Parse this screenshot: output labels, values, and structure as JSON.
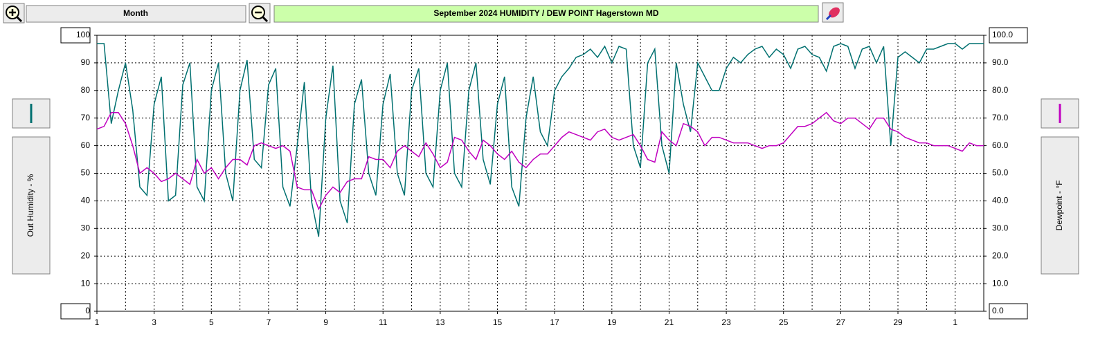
{
  "toolbar": {
    "period": "Month"
  },
  "chart_data": {
    "type": "line",
    "title": "September  2024  HUMIDITY / DEW POINT  Hagerstown MD",
    "y_label": "Out Humidity - %",
    "y2_label": "Dewpoint - °F",
    "x": [
      1,
      1.25,
      1.5,
      1.75,
      2,
      2.25,
      2.5,
      2.75,
      3,
      3.25,
      3.5,
      3.75,
      4,
      4.25,
      4.5,
      4.75,
      5,
      5.25,
      5.5,
      5.75,
      6,
      6.25,
      6.5,
      6.75,
      7,
      7.25,
      7.5,
      7.75,
      8,
      8.25,
      8.5,
      8.75,
      9,
      9.25,
      9.5,
      9.75,
      10,
      10.25,
      10.5,
      10.75,
      11,
      11.25,
      11.5,
      11.75,
      12,
      12.25,
      12.5,
      12.75,
      13,
      13.25,
      13.5,
      13.75,
      14,
      14.25,
      14.5,
      14.75,
      15,
      15.25,
      15.5,
      15.75,
      16,
      16.25,
      16.5,
      16.75,
      17,
      17.25,
      17.5,
      17.75,
      18,
      18.25,
      18.5,
      18.75,
      19,
      19.25,
      19.5,
      19.75,
      20,
      20.25,
      20.5,
      20.75,
      21,
      21.25,
      21.5,
      21.75,
      22,
      22.25,
      22.5,
      22.75,
      23,
      23.25,
      23.5,
      23.75,
      24,
      24.25,
      24.5,
      24.75,
      25,
      25.25,
      25.5,
      25.75,
      26,
      26.25,
      26.5,
      26.75,
      27,
      27.25,
      27.5,
      27.75,
      28,
      28.25,
      28.5,
      28.75,
      29,
      29.25,
      29.5,
      29.75,
      30,
      30.25,
      30.5,
      30.75,
      31,
      31.25,
      31.5,
      31.75,
      32
    ],
    "series": [
      {
        "name": "Out Humidity",
        "color": "#007070",
        "values": [
          97,
          97,
          68,
          80,
          90,
          73,
          45,
          42,
          75,
          85,
          40,
          42,
          82,
          90,
          45,
          40,
          80,
          90,
          50,
          40,
          80,
          91,
          55,
          52,
          82,
          88,
          45,
          38,
          60,
          83,
          40,
          27,
          70,
          89,
          40,
          32,
          75,
          84,
          50,
          42,
          75,
          86,
          50,
          42,
          80,
          88,
          50,
          45,
          80,
          90,
          50,
          45,
          80,
          90,
          55,
          46,
          75,
          85,
          45,
          38,
          70,
          85,
          65,
          60,
          80,
          85,
          88,
          92,
          93,
          95,
          92,
          96,
          90,
          96,
          95,
          60,
          52,
          90,
          95,
          60,
          50,
          90,
          75,
          65,
          90,
          85,
          80,
          80,
          88,
          92,
          90,
          93,
          95,
          96,
          92,
          95,
          93,
          88,
          95,
          96,
          93,
          92,
          87,
          96,
          97,
          96,
          88,
          95,
          96,
          90,
          96,
          60,
          92,
          94,
          92,
          90,
          95,
          95,
          96,
          97,
          97,
          95,
          97,
          97,
          97
        ]
      },
      {
        "name": "Dewpoint",
        "color": "#c000c0",
        "axis": "y2",
        "values": [
          66,
          67,
          72,
          72,
          68,
          60,
          50,
          52,
          50,
          47,
          48,
          50,
          48,
          46,
          55,
          50,
          52,
          48,
          52,
          55,
          55,
          53,
          60,
          61,
          60,
          59,
          60,
          58,
          45,
          44,
          44,
          37,
          42,
          45,
          43,
          47,
          48,
          48,
          56,
          55,
          55,
          52,
          58,
          60,
          58,
          56,
          61,
          57,
          52,
          54,
          63,
          62,
          58,
          55,
          62,
          60,
          57,
          55,
          58,
          54,
          52,
          55,
          57,
          57,
          60,
          63,
          65,
          64,
          63,
          62,
          65,
          66,
          63,
          62,
          63,
          64,
          60,
          55,
          54,
          65,
          62,
          60,
          68,
          67,
          65,
          60,
          63,
          63,
          62,
          61,
          61,
          61,
          60,
          59,
          60,
          60,
          61,
          64,
          67,
          67,
          68,
          70,
          72,
          69,
          68,
          70,
          70,
          68,
          66,
          70,
          70,
          66,
          65,
          63,
          62,
          61,
          61,
          60,
          60,
          60,
          59,
          58,
          61,
          60,
          60
        ]
      }
    ],
    "xlim": [
      1,
      32
    ],
    "xticks": [
      1,
      3,
      5,
      7,
      9,
      11,
      13,
      15,
      17,
      19,
      21,
      23,
      25,
      27,
      29,
      {
        "value": 31,
        "label": "1"
      }
    ],
    "ylim": [
      0,
      100
    ],
    "yticks": [
      0,
      10,
      20,
      30,
      40,
      50,
      60,
      70,
      80,
      90,
      100
    ],
    "y2lim": [
      0,
      100
    ],
    "y2ticks": [
      {
        "value": 0,
        "label": "0.0"
      },
      {
        "value": 10,
        "label": "10.0"
      },
      {
        "value": 20,
        "label": "20.0"
      },
      {
        "value": 30,
        "label": "30.0"
      },
      {
        "value": 40,
        "label": "40.0"
      },
      {
        "value": 50,
        "label": "50.0"
      },
      {
        "value": 60,
        "label": "60.0"
      },
      {
        "value": 70,
        "label": "70.0"
      },
      {
        "value": 80,
        "label": "80.0"
      },
      {
        "value": 90,
        "label": "90.0"
      },
      {
        "value": 100,
        "label": "100.0"
      }
    ],
    "grid": true
  }
}
